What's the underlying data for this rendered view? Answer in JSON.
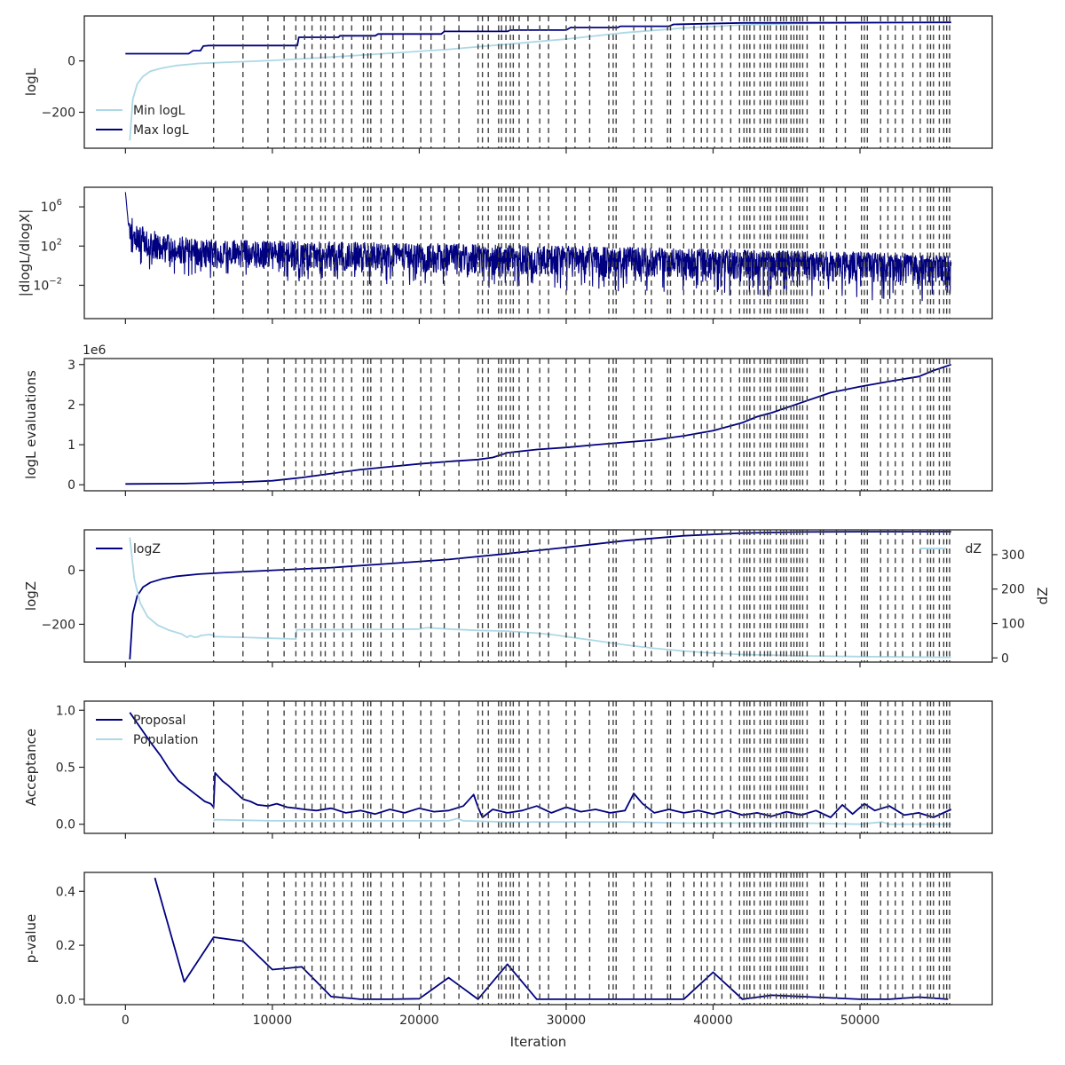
{
  "chart_data": {
    "type": "line",
    "xlabel": "Iteration",
    "xlim": [
      -2800,
      59000
    ],
    "x_ticks": [
      "0",
      "10000",
      "20000",
      "30000",
      "40000",
      "50000"
    ],
    "x_tick_values": [
      0,
      10000,
      20000,
      30000,
      40000,
      50000
    ],
    "insertion_lines": [
      6000,
      8000,
      9700,
      10800,
      11600,
      12200,
      12700,
      13300,
      13600,
      14200,
      14800,
      15400,
      16200,
      16500,
      16700,
      17400,
      18200,
      18900,
      20100,
      20800,
      21700,
      22700,
      24000,
      24300,
      24700,
      25400,
      25600,
      25900,
      26200,
      26400,
      26800,
      27400,
      28200,
      28800,
      30000,
      30600,
      31600,
      32900,
      33200,
      33400,
      34600,
      35400,
      35800,
      36900,
      37100,
      38000,
      38700,
      39200,
      39600,
      40100,
      40600,
      41200,
      41800,
      42100,
      42300,
      42500,
      42800,
      43200,
      43500,
      43700,
      43900,
      44300,
      44600,
      44800,
      45000,
      45300,
      45500,
      45700,
      45900,
      46100,
      46400,
      47300,
      47500,
      48400,
      49000,
      50100,
      50300,
      50500,
      51400,
      51900,
      52400,
      52900,
      53600,
      54100,
      54600,
      54800,
      55000,
      55400,
      55700,
      55900,
      56100
    ],
    "panels": [
      {
        "ylabel": "logL",
        "ylim": [
          -340,
          175
        ],
        "y_ticks": [
          {
            "v": -200,
            "t": "−200"
          },
          {
            "v": 0,
            "t": "0"
          }
        ],
        "legend": [
          {
            "name": "Min logL",
            "color": "#add8e6"
          },
          {
            "name": "Max logL",
            "color": "#000080"
          }
        ],
        "series": [
          {
            "name": "Min logL",
            "color": "#add8e6",
            "x": [
              300,
              500,
              800,
              1200,
              1700,
              2500,
              3500,
              5000,
              7000,
              10000,
              14000,
              18000,
              22000,
              26000,
              30000,
              34000,
              38000,
              42000,
              46000,
              50000,
              56200
            ],
            "y": [
              -310,
              -150,
              -90,
              -60,
              -40,
              -28,
              -18,
              -10,
              -5,
              2,
              15,
              30,
              45,
              65,
              85,
              110,
              128,
              140,
              146,
              148,
              150
            ]
          },
          {
            "name": "Max logL",
            "color": "#000080",
            "x": [
              0,
              4300,
              4600,
              5100,
              5300,
              5700,
              11700,
              11800,
              14500,
              14600,
              17000,
              17200,
              21500,
              21700,
              26000,
              26200,
              30000,
              30300,
              33500,
              33700,
              37000,
              37300,
              42000,
              56200
            ],
            "y": [
              28,
              28,
              40,
              40,
              58,
              60,
              60,
              92,
              92,
              98,
              98,
              105,
              105,
              115,
              115,
              120,
              120,
              130,
              130,
              135,
              135,
              142,
              148,
              150
            ]
          }
        ]
      },
      {
        "ylabel": "|dlogL/dlogX|",
        "log": true,
        "ylim_log10": [
          -5.4,
          8.0
        ],
        "y_ticks": [
          {
            "v": 6,
            "t": "10",
            "e": "6"
          },
          {
            "v": 2,
            "t": "10",
            "e": "2"
          },
          {
            "v": -2,
            "t": "10",
            "e": "−2"
          }
        ],
        "series": [
          {
            "name": "",
            "color": "#000080",
            "x_range": [
              0,
              56200
            ],
            "log_center": [
              [
                0,
                7.5
              ],
              [
                200,
                4.2
              ],
              [
                600,
                2.8
              ],
              [
                1500,
                2.2
              ],
              [
                3000,
                1.6
              ],
              [
                6000,
                1.2
              ],
              [
                20000,
                1.0
              ],
              [
                35000,
                0.8
              ],
              [
                50000,
                0.5
              ],
              [
                56200,
                0.3
              ]
            ],
            "noise_low": [
              -2.5,
              -4.2
            ],
            "noise_high": [
              1.6,
              0.8
            ]
          }
        ]
      },
      {
        "ylabel": "logL evaluations",
        "multiplier": "1e6",
        "ylim": [
          -0.15,
          3.15
        ],
        "y_ticks": [
          {
            "v": 0,
            "t": "0"
          },
          {
            "v": 1,
            "t": "1"
          },
          {
            "v": 2,
            "t": "2"
          },
          {
            "v": 3,
            "t": "3"
          }
        ],
        "series": [
          {
            "name": "",
            "color": "#000080",
            "x": [
              0,
              4000,
              6000,
              8000,
              10000,
              12000,
              14000,
              16000,
              18000,
              20000,
              22000,
              24000,
              25000,
              26000,
              28000,
              30000,
              32000,
              34000,
              36000,
              38000,
              40000,
              41000,
              42000,
              43000,
              44000,
              46000,
              48000,
              50000,
              52000,
              54000,
              55000,
              56200
            ],
            "y": [
              0.02,
              0.03,
              0.05,
              0.07,
              0.1,
              0.18,
              0.28,
              0.38,
              0.45,
              0.52,
              0.58,
              0.63,
              0.68,
              0.8,
              0.88,
              0.93,
              1.0,
              1.06,
              1.12,
              1.22,
              1.35,
              1.45,
              1.55,
              1.7,
              1.8,
              2.05,
              2.3,
              2.45,
              2.58,
              2.7,
              2.85,
              3.0
            ]
          }
        ]
      },
      {
        "ylabel": "logZ",
        "ylabel_right": "dZ",
        "ylim": [
          -340,
          150
        ],
        "ylim_right": [
          -12,
          372
        ],
        "y_ticks": [
          {
            "v": -200,
            "t": "−200"
          },
          {
            "v": 0,
            "t": "0"
          }
        ],
        "y_ticks_right": [
          {
            "v": 0,
            "t": "0"
          },
          {
            "v": 100,
            "t": "100"
          },
          {
            "v": 200,
            "t": "200"
          },
          {
            "v": 300,
            "t": "300"
          }
        ],
        "legend": [
          {
            "name": "logZ",
            "color": "#000080"
          }
        ],
        "legend_right": [
          {
            "name": "dZ",
            "color": "#add8e6"
          }
        ],
        "series": [
          {
            "name": "logZ",
            "color": "#000080",
            "x": [
              300,
              500,
              800,
              1200,
              1700,
              2500,
              3500,
              5000,
              7000,
              10000,
              14000,
              18000,
              22000,
              26000,
              30000,
              34000,
              38000,
              42000,
              46000,
              50000,
              56200
            ],
            "y": [
              -330,
              -160,
              -95,
              -62,
              -45,
              -32,
              -22,
              -14,
              -8,
              0,
              10,
              25,
              40,
              62,
              85,
              110,
              128,
              138,
              142,
              143,
              143
            ]
          },
          {
            "name": "dZ",
            "axis": "right",
            "color": "#add8e6",
            "x": [
              300,
              600,
              1000,
              1500,
              2200,
              3000,
              3800,
              4200,
              4400,
              4700,
              5000,
              5100,
              5700,
              6000,
              6050,
              8000,
              10000,
              11600,
              11650,
              14000,
              18000,
              20000,
              20500,
              22000,
              24000,
              26000,
              28000,
              29000,
              30000,
              32000,
              34000,
              36000,
              38000,
              40000,
              42000,
              44000,
              46000,
              50000,
              56200
            ],
            "y": [
              350,
              230,
              160,
              120,
              95,
              80,
              70,
              60,
              65,
              60,
              62,
              65,
              68,
              66,
              62,
              60,
              57,
              55,
              82,
              82,
              83,
              84,
              88,
              84,
              80,
              78,
              72,
              68,
              62,
              50,
              38,
              28,
              20,
              14,
              10,
              8,
              6,
              4,
              2
            ]
          }
        ]
      },
      {
        "ylabel": "Acceptance",
        "ylim": [
          -0.08,
          1.08
        ],
        "y_ticks": [
          {
            "v": 0,
            "t": "0.0"
          },
          {
            "v": 0.5,
            "t": "0.5"
          },
          {
            "v": 1,
            "t": "1.0"
          }
        ],
        "legend": [
          {
            "name": "Proposal",
            "color": "#000080"
          },
          {
            "name": "Population",
            "color": "#add8e6"
          }
        ],
        "series": [
          {
            "name": "Proposal",
            "color": "#000080",
            "x": [
              300,
              1000,
              1700,
              2400,
              3000,
              3600,
              4200,
              4800,
              5400,
              5800,
              6000,
              6100,
              6600,
              7000,
              7500,
              8000,
              8500,
              9000,
              9700,
              10300,
              11000,
              11600,
              12200,
              13000,
              14000,
              15000,
              16000,
              17000,
              18000,
              19000,
              20000,
              21000,
              22000,
              23000,
              23700,
              24000,
              24300,
              25000,
              26000,
              27000,
              28000,
              29000,
              30000,
              31000,
              32000,
              33000,
              34000,
              34600,
              35200,
              36000,
              37000,
              38000,
              39000,
              40000,
              41000,
              42000,
              43000,
              44000,
              45000,
              46000,
              47000,
              48000,
              48800,
              49500,
              50300,
              51000,
              52000,
              53000,
              54000,
              55000,
              56200
            ],
            "y": [
              0.98,
              0.85,
              0.72,
              0.6,
              0.48,
              0.38,
              0.32,
              0.26,
              0.2,
              0.18,
              0.15,
              0.45,
              0.38,
              0.34,
              0.28,
              0.22,
              0.2,
              0.17,
              0.16,
              0.18,
              0.15,
              0.14,
              0.13,
              0.12,
              0.14,
              0.1,
              0.12,
              0.09,
              0.13,
              0.1,
              0.14,
              0.11,
              0.12,
              0.16,
              0.26,
              0.15,
              0.06,
              0.13,
              0.1,
              0.12,
              0.16,
              0.1,
              0.15,
              0.11,
              0.13,
              0.1,
              0.12,
              0.27,
              0.18,
              0.1,
              0.13,
              0.1,
              0.12,
              0.09,
              0.12,
              0.08,
              0.1,
              0.07,
              0.11,
              0.08,
              0.12,
              0.06,
              0.17,
              0.09,
              0.18,
              0.12,
              0.16,
              0.08,
              0.1,
              0.06,
              0.13
            ]
          },
          {
            "name": "Population",
            "color": "#add8e6",
            "x": [
              6000,
              6100,
              10000,
              14000,
              18000,
              22000,
              22600,
              23000,
              26000,
              30000,
              34000,
              38000,
              42000,
              46000,
              50000,
              51500,
              52000,
              56200
            ],
            "y": [
              0.03,
              0.04,
              0.03,
              0.03,
              0.03,
              0.03,
              0.05,
              0.03,
              0.02,
              0.02,
              0.02,
              0.01,
              0.01,
              0.01,
              0.0,
              0.02,
              0.0,
              0.0
            ]
          }
        ]
      },
      {
        "ylabel": "p-value",
        "ylim": [
          -0.02,
          0.47
        ],
        "y_ticks": [
          {
            "v": 0,
            "t": "0.0"
          },
          {
            "v": 0.2,
            "t": "0.2"
          },
          {
            "v": 0.4,
            "t": "0.4"
          }
        ],
        "series": [
          {
            "name": "",
            "color": "#000080",
            "x": [
              2000,
              4000,
              6000,
              8000,
              10000,
              12000,
              14000,
              16000,
              18000,
              20000,
              22000,
              24000,
              26000,
              28000,
              30000,
              32000,
              34000,
              36000,
              38000,
              40000,
              42000,
              44000,
              46000,
              48000,
              50000,
              52000,
              54000,
              56000
            ],
            "y": [
              0.45,
              0.065,
              0.23,
              0.215,
              0.11,
              0.12,
              0.01,
              0.0,
              0.0,
              0.002,
              0.08,
              0.0,
              0.13,
              0.0,
              0.0,
              0.0,
              0.0,
              0.0,
              0.0,
              0.1,
              0.0,
              0.015,
              0.01,
              0.005,
              0.0,
              0.0,
              0.008,
              0.0
            ]
          }
        ]
      }
    ]
  }
}
